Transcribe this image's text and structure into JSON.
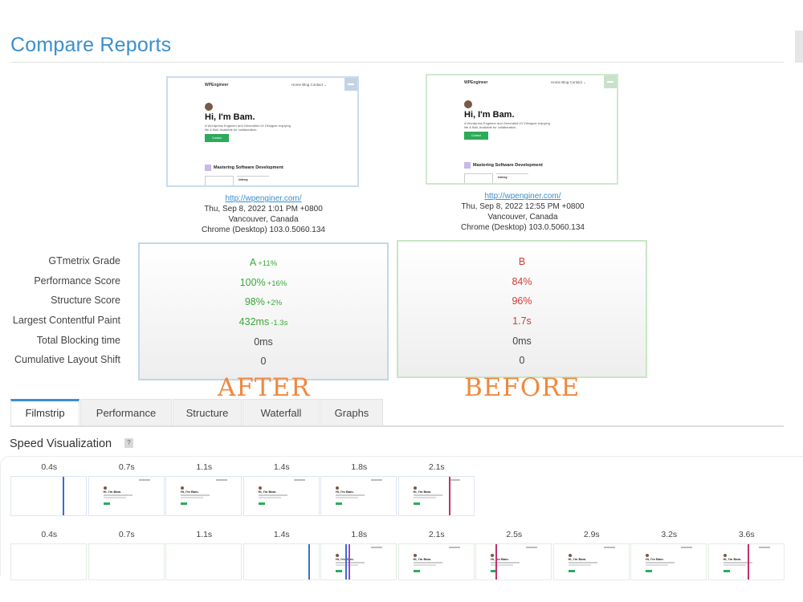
{
  "page": {
    "title": "Compare Reports"
  },
  "reports": {
    "after": {
      "url": "http://wpenginer.com/",
      "date": "Thu, Sep 8, 2022 1:01 PM +0800",
      "location": "Vancouver, Canada",
      "browser": "Chrome (Desktop) 103.0.5060.134",
      "stamp": "AFTER",
      "thumb": {
        "brand": "WPEngineer",
        "nav": "Home  Blog  Contact  ⌄",
        "heading": "Hi, I'm Bam.",
        "sub": "A Wordpress Engineer and Generalist UX Designer enjoying life & Bali. Available for collaboration.",
        "button": "Contact",
        "course": "Mastering Software Development",
        "card": "Udemy"
      }
    },
    "before": {
      "url": "http://wpenginer.com/",
      "date": "Thu, Sep 8, 2022 12:55 PM +0800",
      "location": "Vancouver, Canada",
      "browser": "Chrome (Desktop) 103.0.5060.134",
      "stamp": "BEFORE",
      "thumb": {
        "brand": "WPEngineer",
        "nav": "Home  Blog  Contact  ⌄",
        "heading": "Hi, I'm Bam.",
        "sub": "A Wordpress Engineer and Generalist UX Designer enjoying life & Bali. Available for collaboration.",
        "button": "Contact",
        "course": "Mastering Software Development",
        "card": "Udemy"
      }
    }
  },
  "metrics": {
    "labels": [
      "GTmetrix Grade",
      "Performance Score",
      "Structure Score",
      "Largest Contentful Paint",
      "Total Blocking time",
      "Cumulative Layout Shift"
    ],
    "after": [
      {
        "value": "A",
        "delta": "+11%"
      },
      {
        "value": "100%",
        "delta": "+16%"
      },
      {
        "value": "98%",
        "delta": "+2%"
      },
      {
        "value": "432ms",
        "delta": "-1.3s"
      },
      {
        "value": "0ms",
        "delta": ""
      },
      {
        "value": "0",
        "delta": ""
      }
    ],
    "before": [
      {
        "value": "B"
      },
      {
        "value": "84%"
      },
      {
        "value": "96%"
      },
      {
        "value": "1.7s"
      },
      {
        "value": "0ms"
      },
      {
        "value": "0"
      }
    ]
  },
  "tabs": [
    {
      "label": "Filmstrip",
      "active": true
    },
    {
      "label": "Performance",
      "active": false
    },
    {
      "label": "Structure",
      "active": false
    },
    {
      "label": "Waterfall",
      "active": false
    },
    {
      "label": "Graphs",
      "active": false
    }
  ],
  "speed_visualization": {
    "title": "Speed Visualization",
    "help": "?",
    "after_times": [
      "0.4s",
      "0.7s",
      "1.1s",
      "1.4s",
      "1.8s",
      "2.1s"
    ],
    "before_times": [
      "0.4s",
      "0.7s",
      "1.1s",
      "1.4s",
      "1.8s",
      "2.1s",
      "2.5s",
      "2.9s",
      "3.2s",
      "3.6s"
    ],
    "mini_heading": "Hi, I'm Bam."
  },
  "colors": {
    "accent": "#3a8fcc",
    "grade_good": "#3aa83a",
    "grade_bad": "#d23b36",
    "stamp": "#f0883e"
  }
}
